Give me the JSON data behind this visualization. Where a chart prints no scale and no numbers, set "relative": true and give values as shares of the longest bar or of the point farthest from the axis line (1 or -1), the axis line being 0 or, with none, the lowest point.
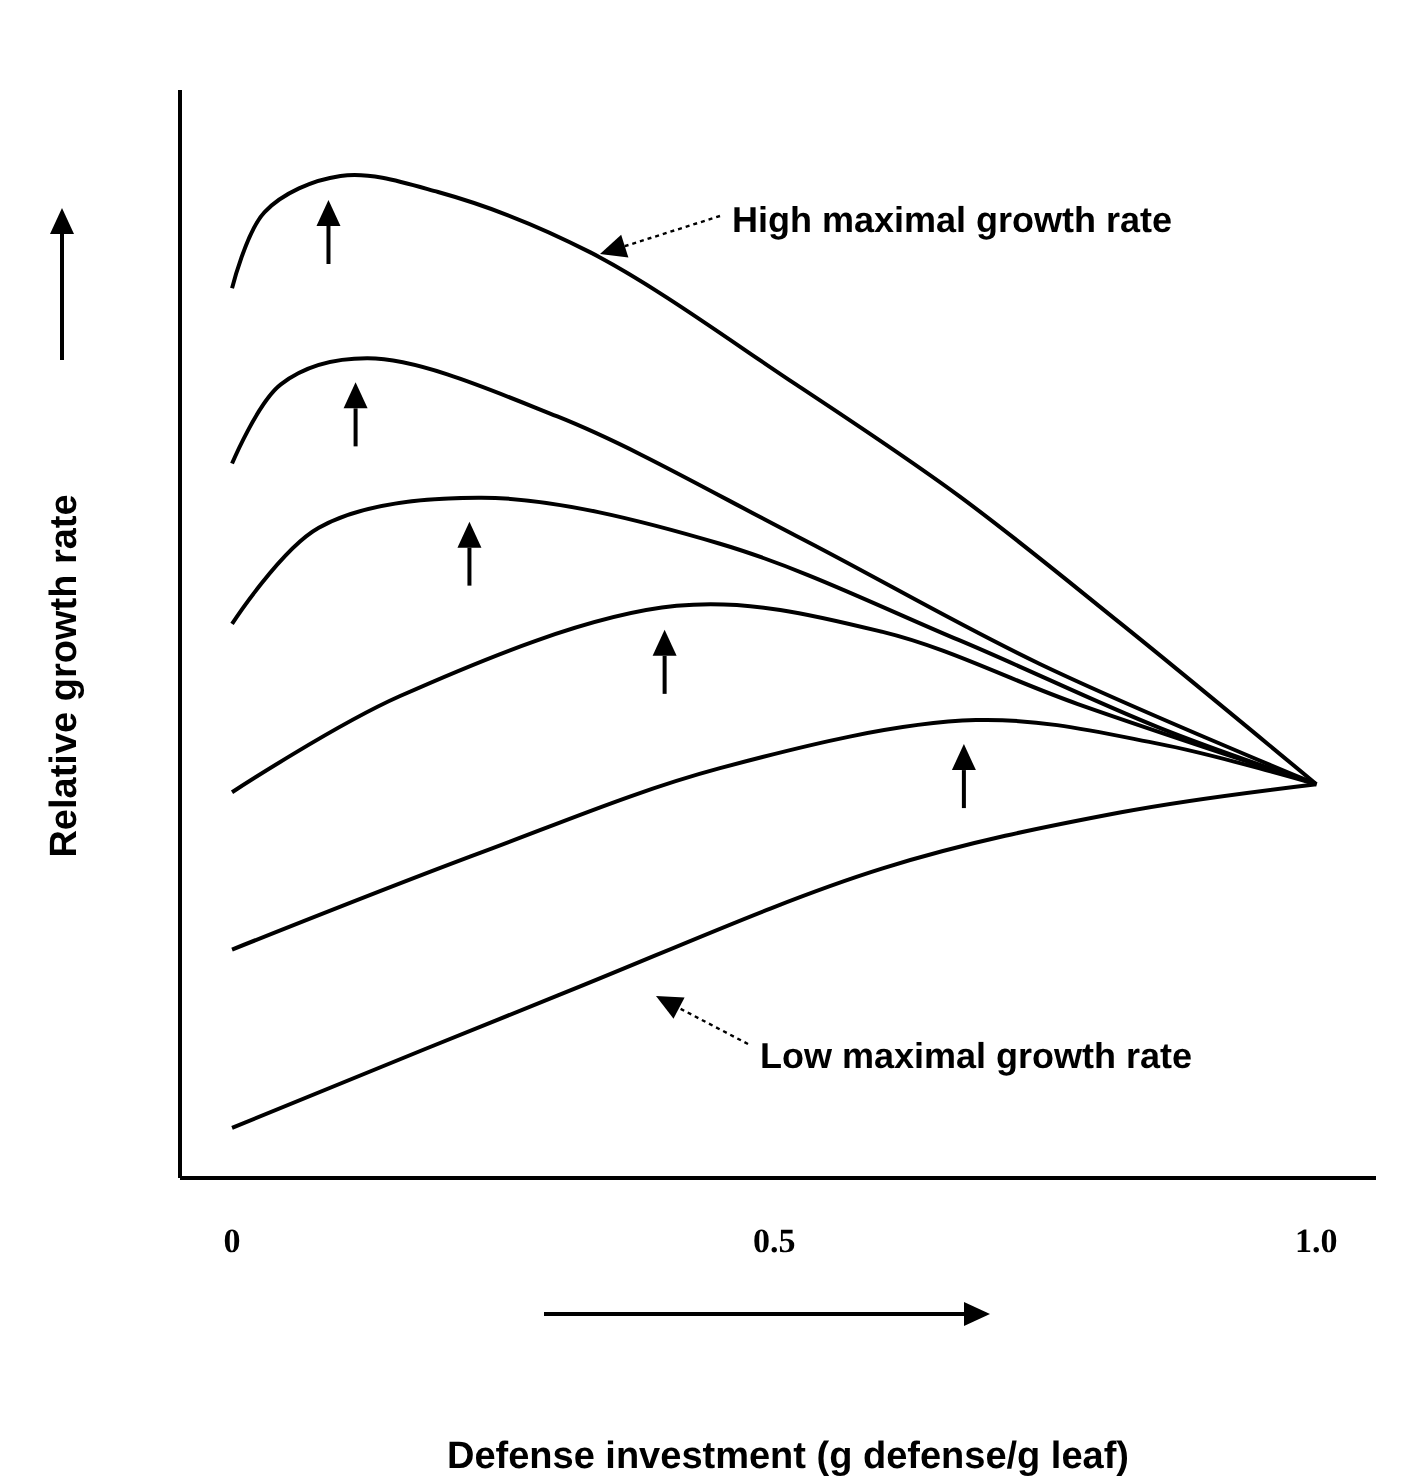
{
  "chart_data": {
    "type": "line",
    "relative": true,
    "xlabel": "Defense investment (g defense/g leaf)",
    "ylabel": "Relative growth rate",
    "xlim": [
      -0.048,
      1.055
    ],
    "xticks": [
      0,
      0.5,
      {
        "value": 1,
        "label": "1.0"
      }
    ],
    "grid": false,
    "series": [
      {
        "color": "#000000",
        "x": [
          0,
          0.03,
          0.1,
          0.19,
          0.33,
          0.52,
          0.67,
          0.82,
          1
        ],
        "values": [
          0.888,
          0.964,
          1,
          0.984,
          0.924,
          0.792,
          0.681,
          0.553,
          0.393
        ]
      },
      {
        "color": "#000000",
        "x": [
          0,
          0.045,
          0.125,
          0.3,
          0.52,
          0.745,
          1
        ],
        "values": [
          0.713,
          0.792,
          0.818,
          0.76,
          0.641,
          0.513,
          0.393
        ]
      },
      {
        "color": "#000000",
        "x": [
          0,
          0.08,
          0.23,
          0.45,
          0.67,
          0.856,
          1
        ],
        "values": [
          0.553,
          0.649,
          0.679,
          0.633,
          0.537,
          0.449,
          0.393
        ]
      },
      {
        "color": "#000000",
        "x": [
          0,
          0.155,
          0.41,
          0.6,
          0.78,
          1
        ],
        "values": [
          0.385,
          0.481,
          0.571,
          0.545,
          0.473,
          0.393
        ]
      },
      {
        "color": "#000000",
        "x": [
          0,
          0.23,
          0.45,
          0.686,
          0.856,
          1
        ],
        "values": [
          0.228,
          0.325,
          0.409,
          0.457,
          0.433,
          0.393
        ]
      },
      {
        "color": "#000000",
        "x": [
          0,
          0.3,
          0.6,
          0.82,
          1
        ],
        "values": [
          0.05,
          0.182,
          0.309,
          0.365,
          0.393
        ]
      }
    ],
    "annotations": [
      "High maximal growth rate",
      "Low maximal growth rate"
    ]
  }
}
